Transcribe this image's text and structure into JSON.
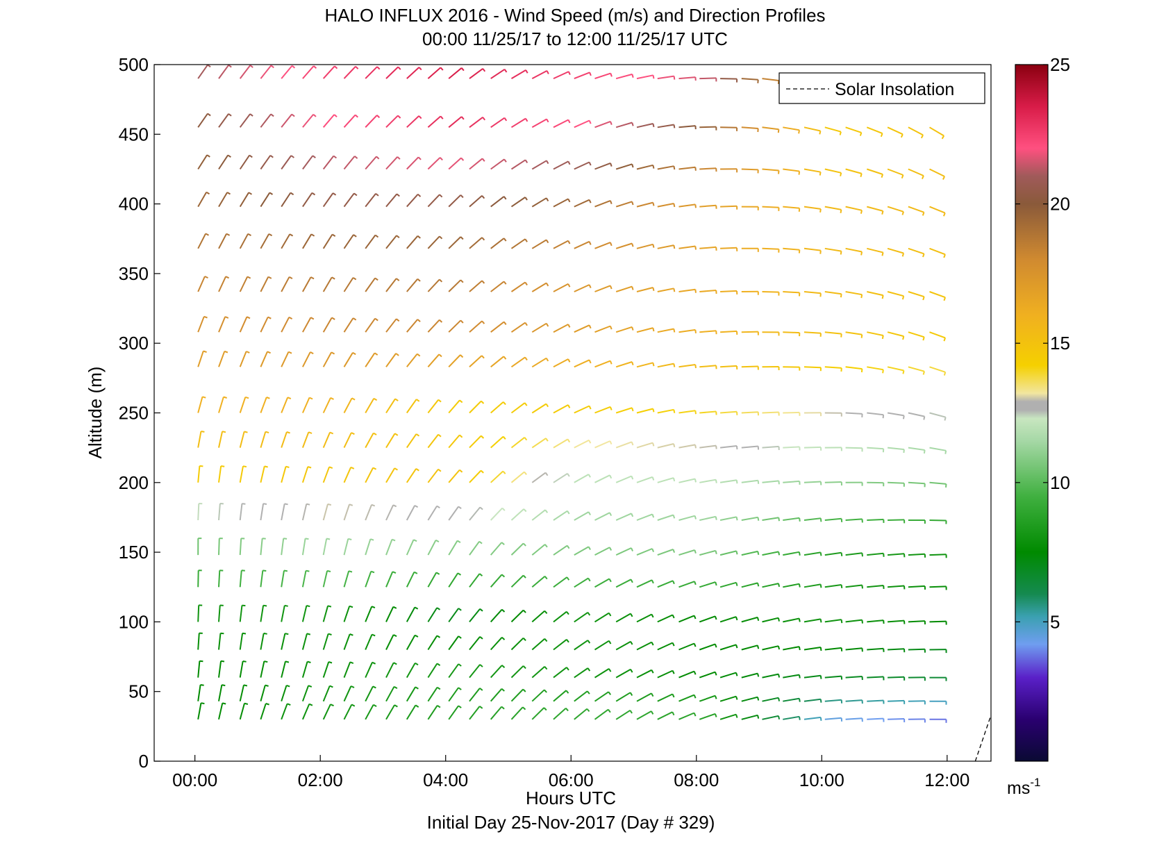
{
  "chart_data": {
    "type": "wind-barb-profile",
    "title": "HALO INFLUX 2016 - Wind Speed (m/s) and Direction Profiles",
    "subtitle": "00:00 11/25/17 to 12:00 11/25/17  UTC",
    "xlabel": "Hours UTC",
    "ylabel": "Altitude (m)",
    "footer": "Initial Day 25-Nov-2017 (Day # 329)",
    "xlim": [
      -0.65,
      12.7
    ],
    "ylim": [
      0,
      500
    ],
    "x_ticks": [
      0,
      2,
      4,
      6,
      8,
      10,
      12
    ],
    "x_tick_labels": [
      "00:00",
      "02:00",
      "04:00",
      "06:00",
      "08:00",
      "10:00",
      "12:00"
    ],
    "y_ticks": [
      0,
      50,
      100,
      150,
      200,
      250,
      300,
      350,
      400,
      450,
      500
    ],
    "y_tick_labels": [
      "0",
      "50",
      "100",
      "150",
      "200",
      "250",
      "300",
      "350",
      "400",
      "450",
      "500"
    ],
    "legend": {
      "label": "Solar Insolation",
      "placement": "top-right",
      "line_style": "dashed"
    },
    "solar_insolation": {
      "x": [
        12.45,
        12.7
      ],
      "y": [
        0,
        33
      ]
    },
    "colorbar": {
      "range": [
        0,
        25
      ],
      "ticks": [
        5,
        10,
        15,
        20,
        25
      ],
      "tick_labels": [
        "5",
        "10",
        "15",
        "20",
        "25"
      ],
      "unit_label": "ms",
      "unit_exponent": "-1",
      "stops": [
        {
          "v": 0,
          "c": "#0a0a33"
        },
        {
          "v": 1.5,
          "c": "#2a0070"
        },
        {
          "v": 3,
          "c": "#5a20c8"
        },
        {
          "v": 4.2,
          "c": "#6f9ef0"
        },
        {
          "v": 5.2,
          "c": "#3aa0b0"
        },
        {
          "v": 6,
          "c": "#158a50"
        },
        {
          "v": 7.5,
          "c": "#008a00"
        },
        {
          "v": 9.5,
          "c": "#40b040"
        },
        {
          "v": 11.5,
          "c": "#a6d8a6"
        },
        {
          "v": 12.3,
          "c": "#c8e6c0"
        },
        {
          "v": 12.6,
          "c": "#b0b0b0"
        },
        {
          "v": 12.9,
          "c": "#b0b0b0"
        },
        {
          "v": 13.2,
          "c": "#f2e6a0"
        },
        {
          "v": 14.2,
          "c": "#f5d000"
        },
        {
          "v": 16,
          "c": "#f0b020"
        },
        {
          "v": 18,
          "c": "#d08a30"
        },
        {
          "v": 20,
          "c": "#8a5a3a"
        },
        {
          "v": 21,
          "c": "#a05a5a"
        },
        {
          "v": 22,
          "c": "#ff5080"
        },
        {
          "v": 23.5,
          "c": "#d81c48"
        },
        {
          "v": 25,
          "c": "#8a0010"
        }
      ]
    },
    "times": [
      0.05,
      0.38,
      0.72,
      1.05,
      1.38,
      1.72,
      2.05,
      2.38,
      2.72,
      3.05,
      3.38,
      3.72,
      4.05,
      4.38,
      4.72,
      5.05,
      5.38,
      5.72,
      6.05,
      6.38,
      6.72,
      7.05,
      7.38,
      7.72,
      8.05,
      8.38,
      8.72,
      9.05,
      9.38,
      9.72,
      10.05,
      10.38,
      10.72,
      11.05,
      11.38,
      11.72
    ],
    "altitudes": [
      30,
      43,
      60,
      80,
      100,
      125,
      148,
      173,
      200,
      225,
      250,
      283,
      308,
      337,
      368,
      398,
      425,
      455,
      490
    ],
    "wind_model": {
      "time_breaks": [
        0,
        2,
        4,
        6,
        8,
        10,
        11.7
      ],
      "alt_breaks": [
        30,
        60,
        100,
        150,
        200,
        250,
        300,
        350,
        400,
        450,
        490
      ],
      "direction_from_deg": [
        [
          190,
          205,
          215,
          230,
          250,
          265,
          270
        ],
        [
          185,
          198,
          215,
          235,
          250,
          265,
          270
        ],
        [
          182,
          195,
          215,
          235,
          250,
          262,
          268
        ],
        [
          180,
          190,
          210,
          240,
          255,
          262,
          268
        ],
        [
          185,
          200,
          220,
          240,
          260,
          268,
          275
        ],
        [
          195,
          205,
          220,
          245,
          265,
          270,
          285
        ],
        [
          200,
          210,
          225,
          245,
          265,
          275,
          290
        ],
        [
          205,
          210,
          225,
          245,
          265,
          278,
          290
        ],
        [
          210,
          215,
          225,
          245,
          265,
          280,
          292
        ],
        [
          215,
          220,
          230,
          245,
          268,
          285,
          300
        ],
        [
          215,
          222,
          230,
          248,
          268,
          285,
          305
        ]
      ],
      "speed_ms": [
        [
          7.5,
          8,
          8.5,
          9,
          8.8,
          4.5,
          3.8
        ],
        [
          7.5,
          7.8,
          8.2,
          8,
          7.5,
          7,
          6.5
        ],
        [
          8,
          8,
          7,
          8,
          7.5,
          8,
          7.5
        ],
        [
          10.5,
          11.5,
          11,
          10.8,
          10.8,
          8.5,
          8
        ],
        [
          14.5,
          14.8,
          15,
          12,
          12,
          11,
          10.5
        ],
        [
          16,
          16,
          14.5,
          14.5,
          14,
          13,
          12.5
        ],
        [
          17.5,
          18,
          18,
          17,
          16,
          15,
          14.5
        ],
        [
          18.5,
          19,
          19,
          17.5,
          16.5,
          15.5,
          15
        ],
        [
          19.5,
          20.5,
          20.5,
          19.5,
          17,
          15.5,
          15.5
        ],
        [
          20,
          22,
          23,
          22,
          19.5,
          14.5,
          15
        ],
        [
          21,
          22.5,
          23.5,
          22.5,
          21.5,
          15.5,
          15
        ]
      ]
    }
  }
}
